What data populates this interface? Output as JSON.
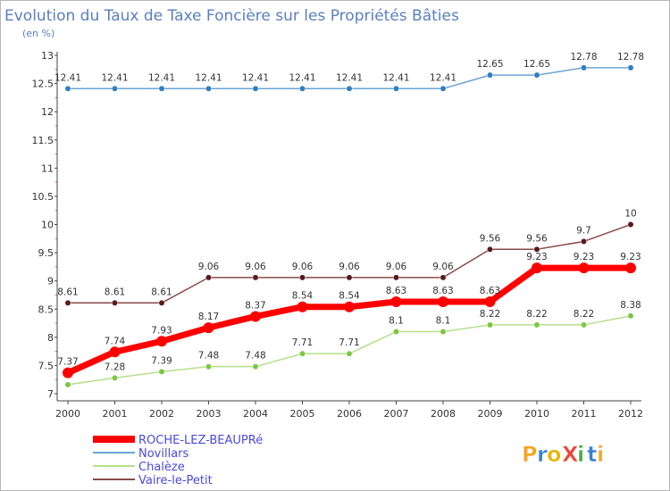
{
  "chart_data": {
    "type": "line",
    "title": "Evolution du Taux de Taxe Foncière sur les Propriétés Bâties",
    "subtitle": "(en %)",
    "xlabel": "",
    "ylabel": "(en %)",
    "x": [
      "2000",
      "2001",
      "2002",
      "2003",
      "2004",
      "2005",
      "2006",
      "2007",
      "2008",
      "2009",
      "2010",
      "2011",
      "2012"
    ],
    "ylim": [
      7,
      13
    ],
    "yticks": [
      7,
      7.5,
      8,
      8.5,
      9,
      9.5,
      10,
      10.5,
      11,
      11.5,
      12,
      12.5,
      13
    ],
    "ytick_labels": [
      "7",
      "7.5",
      "8",
      "8.5",
      "9",
      "9.5",
      "10",
      "10.5",
      "11",
      "11.5",
      "12",
      "12.5",
      "13"
    ],
    "grid": false,
    "legend_position": "bottom-left",
    "series": [
      {
        "name": "Novillars",
        "color": "#6aa5d6",
        "marker_color": "#2f7fbf",
        "line_width": 1.5,
        "values": [
          12.41,
          12.41,
          12.41,
          12.41,
          12.41,
          12.41,
          12.41,
          12.41,
          12.41,
          12.65,
          12.65,
          12.78,
          12.78
        ],
        "labels": [
          "12.41",
          "12.41",
          "12.41",
          "12.41",
          "12.41",
          "12.41",
          "12.41",
          "12.41",
          "12.41",
          "12.65",
          "12.65",
          "12.78",
          "12.78"
        ]
      },
      {
        "name": "Vaire-le-Petit",
        "color": "#8a4b4b",
        "marker_color": "#5a1a1a",
        "line_width": 1.5,
        "values": [
          8.61,
          8.61,
          8.61,
          9.06,
          9.06,
          9.06,
          9.06,
          9.06,
          9.06,
          9.56,
          9.56,
          9.7,
          10
        ],
        "labels": [
          "8.61",
          "8.61",
          "8.61",
          "9.06",
          "9.06",
          "9.06",
          "9.06",
          "9.06",
          "9.06",
          "9.56",
          "9.56",
          "9.7",
          "10"
        ]
      },
      {
        "name": "ROCHE-LEZ-BEAUPRé",
        "color": "#ff0000",
        "marker_color": "#ff0000",
        "line_width": 7,
        "values": [
          7.37,
          7.74,
          7.93,
          8.17,
          8.37,
          8.54,
          8.54,
          8.63,
          8.63,
          8.63,
          9.23,
          9.23,
          9.23
        ],
        "labels": [
          "7.37",
          "7.74",
          "7.93",
          "8.17",
          "8.37",
          "8.54",
          "8.54",
          "8.63",
          "8.63",
          "8.63",
          "9.23",
          "9.23",
          "9.23"
        ]
      },
      {
        "name": "Chalèze",
        "color": "#b4e08a",
        "marker_color": "#7bc840",
        "line_width": 1.5,
        "values": [
          7.16,
          7.28,
          7.39,
          7.48,
          7.48,
          7.71,
          7.71,
          8.1,
          8.1,
          8.22,
          8.22,
          8.22,
          8.38
        ],
        "labels": [
          "",
          "7.28",
          "7.39",
          "7.48",
          "7.48",
          "7.71",
          "7.71",
          "8.1",
          "8.1",
          "8.22",
          "8.22",
          "8.22",
          "8.38"
        ]
      }
    ],
    "legend": [
      {
        "name": "ROCHE-LEZ-BEAUPRé",
        "color": "#ff0000",
        "thick": true
      },
      {
        "name": "Novillars",
        "color": "#6aa5d6",
        "thick": false
      },
      {
        "name": "Chalèze",
        "color": "#b4e08a",
        "thick": false
      },
      {
        "name": "Vaire-le-Petit",
        "color": "#8a4b4b",
        "thick": false
      }
    ]
  },
  "branding": {
    "logo_text": "ProXiti",
    "logo_letters": [
      {
        "ch": "P",
        "color": "#f5a623"
      },
      {
        "ch": "r",
        "color": "#3a7fd4"
      },
      {
        "ch": "o",
        "color": "#e8b400"
      },
      {
        "ch": "X",
        "color": "#e8483c"
      },
      {
        "ch": "i",
        "color": "#4aa84a"
      },
      {
        "ch": "t",
        "color": "#3a7fd4"
      },
      {
        "ch": "i",
        "color": "#f5a623"
      }
    ]
  }
}
